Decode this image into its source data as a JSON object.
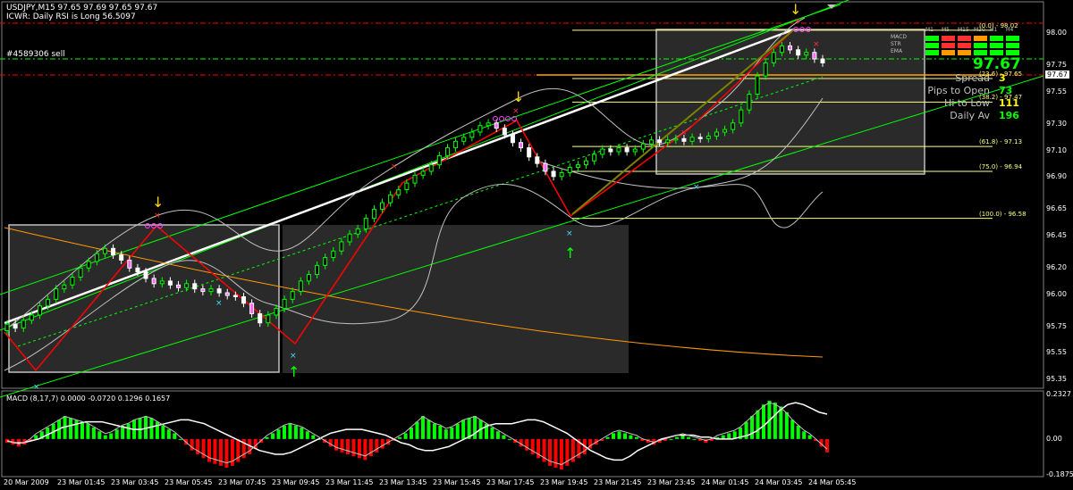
{
  "header": {
    "symbol_line": "USDJPY,M15  97.65 97.69 97.65 97.67",
    "rsi_line": "ICWR: Daily RSI is Long 56.5097",
    "order_line": "#4589306 sell"
  },
  "info_panel": {
    "price": "97.67",
    "rows": [
      {
        "label": "Spread",
        "value": "3",
        "color": "#ffff00"
      },
      {
        "label": "Pips to Open",
        "value": "73",
        "color": "#00ff00"
      },
      {
        "label": "Hi to Low",
        "value": "111",
        "color": "#ffff00"
      },
      {
        "label": "Daily Av",
        "value": "196",
        "color": "#00ff00"
      }
    ],
    "timeframes": [
      "M1",
      "M5",
      "M15",
      "M30",
      "H1",
      "H4"
    ],
    "indicators": [
      "MACD",
      "STR",
      "EMA"
    ]
  },
  "price_axis": [
    "98.00",
    "97.75",
    "97.55",
    "97.30",
    "97.10",
    "96.90",
    "96.65",
    "96.45",
    "96.20",
    "96.00",
    "95.75",
    "95.55",
    "95.35"
  ],
  "current_price_tag": "97.67",
  "fib_levels": [
    {
      "label": "(0.0) - 98.02",
      "value": 98.02
    },
    {
      "label": "(23.6) - 97.65",
      "value": 97.65
    },
    {
      "label": "(38.2) - 97.47",
      "value": 97.47
    },
    {
      "label": "(61.8) - 97.13",
      "value": 97.13
    },
    {
      "label": "(75.0) - 96.94",
      "value": 96.94
    },
    {
      "label": "(100.0) - 96.58",
      "value": 96.58
    }
  ],
  "time_axis": [
    "20 Mar 2009",
    "23 Mar 01:45",
    "23 Mar 03:45",
    "23 Mar 05:45",
    "23 Mar 07:45",
    "23 Mar 09:45",
    "23 Mar 11:45",
    "23 Mar 13:45",
    "23 Mar 15:45",
    "23 Mar 17:45",
    "23 Mar 19:45",
    "23 Mar 21:45",
    "23 Mar 23:45",
    "24 Mar 01:45",
    "24 Mar 03:45",
    "24 Mar 05:45"
  ],
  "macd": {
    "title": "MACD  (8,17,7) 0.0000 -0.0720 0.1296 0.1657",
    "axis": [
      "0.2327",
      "0.00",
      "-0.1875"
    ],
    "histogram": [
      -0.02,
      -0.03,
      -0.04,
      -0.03,
      -0.01,
      0.02,
      0.04,
      0.06,
      0.08,
      0.1,
      0.12,
      0.11,
      0.1,
      0.09,
      0.08,
      0.06,
      0.04,
      0.02,
      0.03,
      0.05,
      0.07,
      0.08,
      0.1,
      0.11,
      0.12,
      0.11,
      0.09,
      0.07,
      0.05,
      0.03,
      0.0,
      -0.03,
      -0.06,
      -0.08,
      -0.1,
      -0.12,
      -0.13,
      -0.14,
      -0.15,
      -0.14,
      -0.12,
      -0.1,
      -0.08,
      -0.05,
      -0.02,
      0.01,
      0.03,
      0.05,
      0.07,
      0.08,
      0.07,
      0.06,
      0.04,
      0.02,
      0.0,
      -0.02,
      -0.04,
      -0.06,
      -0.07,
      -0.08,
      -0.09,
      -0.1,
      -0.11,
      -0.09,
      -0.07,
      -0.05,
      -0.03,
      -0.01,
      0.01,
      0.03,
      0.06,
      0.09,
      0.12,
      0.1,
      0.08,
      0.07,
      0.05,
      0.06,
      0.08,
      0.1,
      0.11,
      0.12,
      0.1,
      0.08,
      0.06,
      0.04,
      0.02,
      0.0,
      -0.02,
      -0.04,
      -0.06,
      -0.08,
      -0.1,
      -0.12,
      -0.14,
      -0.15,
      -0.16,
      -0.14,
      -0.12,
      -0.1,
      -0.08,
      -0.05,
      -0.03,
      -0.01,
      0.01,
      0.03,
      0.04,
      0.03,
      0.02,
      0.01,
      -0.01,
      -0.02,
      -0.03,
      -0.02,
      -0.01,
      0.0,
      0.01,
      0.02,
      0.01,
      0.0,
      -0.01,
      -0.02,
      -0.01,
      0.01,
      0.02,
      0.03,
      0.04,
      0.06,
      0.09,
      0.12,
      0.15,
      0.18,
      0.2,
      0.19,
      0.17,
      0.14,
      0.1,
      0.07,
      0.04,
      0.02,
      -0.01,
      -0.04,
      -0.07
    ],
    "signal": [
      -0.01,
      -0.02,
      -0.02,
      -0.01,
      0.0,
      0.02,
      0.04,
      0.06,
      0.07,
      0.08,
      0.09,
      0.09,
      0.09,
      0.08,
      0.07,
      0.06,
      0.05,
      0.05,
      0.06,
      0.07,
      0.08,
      0.09,
      0.1,
      0.1,
      0.09,
      0.08,
      0.06,
      0.04,
      0.02,
      0.0,
      -0.02,
      -0.04,
      -0.06,
      -0.07,
      -0.08,
      -0.08,
      -0.07,
      -0.05,
      -0.03,
      -0.01,
      0.01,
      0.03,
      0.04,
      0.05,
      0.05,
      0.05,
      0.04,
      0.03,
      0.02,
      0.0,
      -0.02,
      -0.03,
      -0.05,
      -0.06,
      -0.06,
      -0.05,
      -0.04,
      -0.02,
      0.0,
      0.02,
      0.05,
      0.07,
      0.08,
      0.08,
      0.08,
      0.09,
      0.1,
      0.1,
      0.09,
      0.07,
      0.05,
      0.03,
      0.0,
      -0.03,
      -0.06,
      -0.08,
      -0.1,
      -0.11,
      -0.11,
      -0.09,
      -0.06,
      -0.04,
      -0.02,
      0.0,
      0.01,
      0.02,
      0.02,
      0.02,
      0.01,
      0.01,
      0.0,
      0.0,
      0.0,
      0.01,
      0.02,
      0.04,
      0.07,
      0.11,
      0.15,
      0.18,
      0.19,
      0.18,
      0.16,
      0.14,
      0.13
    ]
  },
  "colors": {
    "bull_candle": "#00ff00",
    "bear_candle": "#ffffff",
    "zigzag": "#ff0000",
    "trend": "#00ff00",
    "fib": "#ffff80",
    "macd_pos": "#00ff00",
    "macd_neg": "#ff0000"
  }
}
